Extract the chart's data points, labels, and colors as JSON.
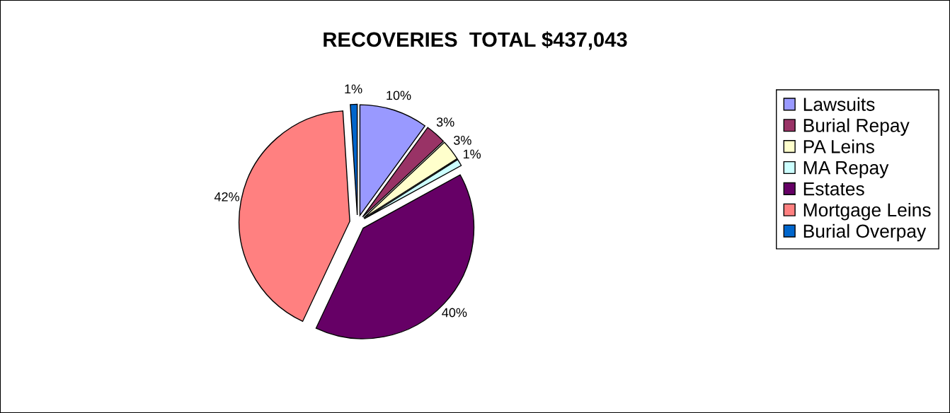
{
  "chart_data": {
    "type": "pie",
    "title": "RECOVERIES  TOTAL $437,043",
    "categories": [
      "Lawsuits",
      "Burial Repay",
      "PA Leins",
      "MA Repay",
      "Estates",
      "Mortgage Leins",
      "Burial Overpay"
    ],
    "values": [
      10,
      3,
      3,
      1,
      40,
      42,
      1
    ],
    "value_labels": [
      "10%",
      "3%",
      "3%",
      "1%",
      "40%",
      "42%",
      "1%"
    ],
    "colors": [
      "#9999ff",
      "#993366",
      "#ffffcc",
      "#ccffff",
      "#660066",
      "#ff8080",
      "#0066cc"
    ],
    "legend": "right"
  }
}
